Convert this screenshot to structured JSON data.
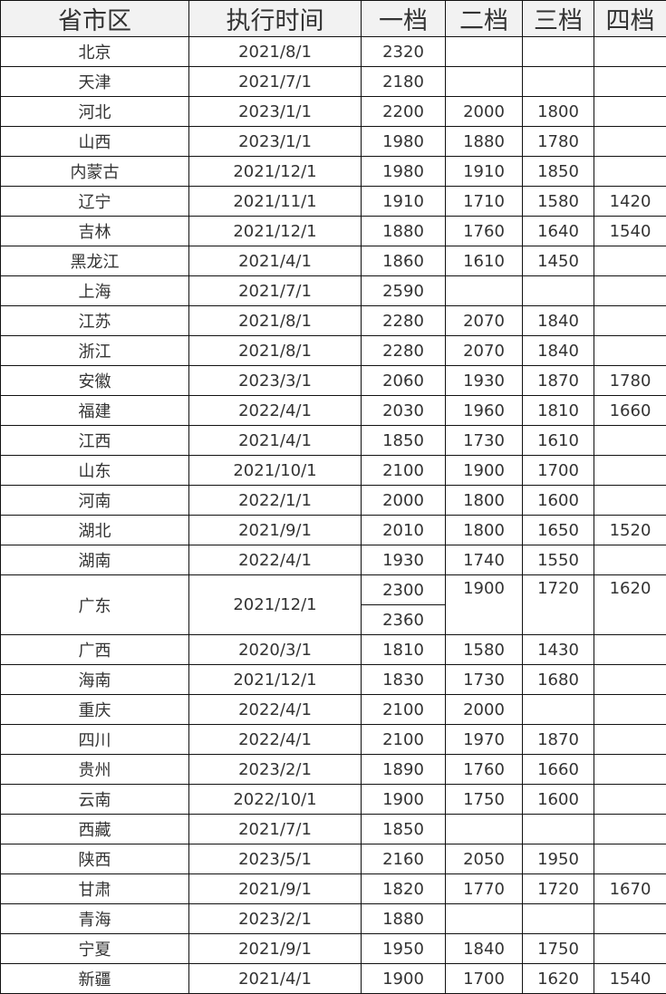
{
  "headers": [
    "省市区",
    "执行时间",
    "一档",
    "二档",
    "三档",
    "四档"
  ],
  "rows": [
    {
      "province": "北京",
      "date": "2021/8/1",
      "tiers": [
        "2320",
        "",
        "",
        ""
      ]
    },
    {
      "province": "天津",
      "date": "2021/7/1",
      "tiers": [
        "2180",
        "",
        "",
        ""
      ]
    },
    {
      "province": "河北",
      "date": "2023/1/1",
      "tiers": [
        "2200",
        "2000",
        "1800",
        ""
      ]
    },
    {
      "province": "山西",
      "date": "2023/1/1",
      "tiers": [
        "1980",
        "1880",
        "1780",
        ""
      ]
    },
    {
      "province": "内蒙古",
      "date": "2021/12/1",
      "tiers": [
        "1980",
        "1910",
        "1850",
        ""
      ]
    },
    {
      "province": "辽宁",
      "date": "2021/11/1",
      "tiers": [
        "1910",
        "1710",
        "1580",
        "1420"
      ]
    },
    {
      "province": "吉林",
      "date": "2021/12/1",
      "tiers": [
        "1880",
        "1760",
        "1640",
        "1540"
      ]
    },
    {
      "province": "黑龙江",
      "date": "2021/4/1",
      "tiers": [
        "1860",
        "1610",
        "1450",
        ""
      ]
    },
    {
      "province": "上海",
      "date": "2021/7/1",
      "tiers": [
        "2590",
        "",
        "",
        ""
      ]
    },
    {
      "province": "江苏",
      "date": "2021/8/1",
      "tiers": [
        "2280",
        "2070",
        "1840",
        ""
      ]
    },
    {
      "province": "浙江",
      "date": "2021/8/1",
      "tiers": [
        "2280",
        "2070",
        "1840",
        ""
      ]
    },
    {
      "province": "安徽",
      "date": "2023/3/1",
      "tiers": [
        "2060",
        "1930",
        "1870",
        "1780"
      ]
    },
    {
      "province": "福建",
      "date": "2022/4/1",
      "tiers": [
        "2030",
        "1960",
        "1810",
        "1660"
      ]
    },
    {
      "province": "江西",
      "date": "2021/4/1",
      "tiers": [
        "1850",
        "1730",
        "1610",
        ""
      ]
    },
    {
      "province": "山东",
      "date": "2021/10/1",
      "tiers": [
        "2100",
        "1900",
        "1700",
        ""
      ]
    },
    {
      "province": "河南",
      "date": "2022/1/1",
      "tiers": [
        "2000",
        "1800",
        "1600",
        ""
      ]
    },
    {
      "province": "湖北",
      "date": "2021/9/1",
      "tiers": [
        "2010",
        "1800",
        "1650",
        "1520"
      ]
    },
    {
      "province": "湖南",
      "date": "2022/4/1",
      "tiers": [
        "1930",
        "1740",
        "1550",
        ""
      ]
    },
    {
      "province": "广东",
      "date": "2021/12/1",
      "tiers": [
        "2300",
        "1900",
        "1720",
        "1620"
      ],
      "tier1_extra": "2360"
    },
    {
      "province": "广西",
      "date": "2020/3/1",
      "tiers": [
        "1810",
        "1580",
        "1430",
        ""
      ]
    },
    {
      "province": "海南",
      "date": "2021/12/1",
      "tiers": [
        "1830",
        "1730",
        "1680",
        ""
      ]
    },
    {
      "province": "重庆",
      "date": "2022/4/1",
      "tiers": [
        "2100",
        "2000",
        "",
        ""
      ]
    },
    {
      "province": "四川",
      "date": "2022/4/1",
      "tiers": [
        "2100",
        "1970",
        "1870",
        ""
      ]
    },
    {
      "province": "贵州",
      "date": "2023/2/1",
      "tiers": [
        "1890",
        "1760",
        "1660",
        ""
      ]
    },
    {
      "province": "云南",
      "date": "2022/10/1",
      "tiers": [
        "1900",
        "1750",
        "1600",
        ""
      ]
    },
    {
      "province": "西藏",
      "date": "2021/7/1",
      "tiers": [
        "1850",
        "",
        "",
        ""
      ]
    },
    {
      "province": "陕西",
      "date": "2023/5/1",
      "tiers": [
        "2160",
        "2050",
        "1950",
        ""
      ]
    },
    {
      "province": "甘肃",
      "date": "2021/9/1",
      "tiers": [
        "1820",
        "1770",
        "1720",
        "1670"
      ]
    },
    {
      "province": "青海",
      "date": "2023/2/1",
      "tiers": [
        "1880",
        "",
        "",
        ""
      ]
    },
    {
      "province": "宁夏",
      "date": "2021/9/1",
      "tiers": [
        "1950",
        "1840",
        "1750",
        ""
      ]
    },
    {
      "province": "新疆",
      "date": "2021/4/1",
      "tiers": [
        "1900",
        "1700",
        "1620",
        "1540"
      ]
    }
  ]
}
